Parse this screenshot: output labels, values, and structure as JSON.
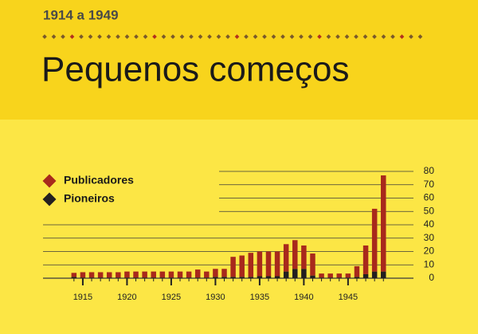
{
  "chart_data": {
    "type": "stacked-bar",
    "subtitle": "1914 a 1949",
    "title": "Pequenos começos",
    "x": [
      1914,
      1915,
      1916,
      1917,
      1918,
      1919,
      1920,
      1921,
      1922,
      1923,
      1924,
      1925,
      1926,
      1927,
      1928,
      1929,
      1930,
      1931,
      1932,
      1933,
      1934,
      1935,
      1936,
      1937,
      1938,
      1939,
      1940,
      1941,
      1942,
      1943,
      1944,
      1945,
      1946,
      1947,
      1948,
      1949
    ],
    "series": [
      {
        "name": "Publicadores",
        "color": "#a8291c",
        "values": [
          3,
          4,
          4,
          4,
          4,
          4,
          4.5,
          4.5,
          4.5,
          4.5,
          4.5,
          4.5,
          4.5,
          4.5,
          6,
          4.5,
          6,
          6,
          15,
          16,
          18,
          18.5,
          18.5,
          18.5,
          20.5,
          21.5,
          17.5,
          16.5,
          3,
          3,
          3,
          3,
          8,
          21.5,
          47,
          72
        ]
      },
      {
        "name": "Pioneiros",
        "color": "#231f20",
        "values": [
          1,
          0.5,
          0.5,
          0.5,
          0.5,
          0.5,
          0.5,
          0.5,
          0.5,
          0.5,
          0.5,
          0.5,
          0.5,
          0.5,
          0.5,
          0.5,
          1,
          1,
          1,
          1,
          1,
          1.5,
          1.5,
          1.5,
          5,
          7,
          7,
          2,
          0.5,
          0.5,
          0.5,
          0.5,
          1,
          3,
          5,
          5
        ]
      }
    ],
    "xlim": [
      1910.5,
      1952.4
    ],
    "xticks": [
      1915,
      1920,
      1925,
      1930,
      1935,
      1940,
      1945
    ],
    "ylim": [
      0,
      80
    ],
    "yticks": [
      0,
      10,
      20,
      30,
      40,
      50,
      60,
      70,
      80
    ],
    "grid": true
  }
}
